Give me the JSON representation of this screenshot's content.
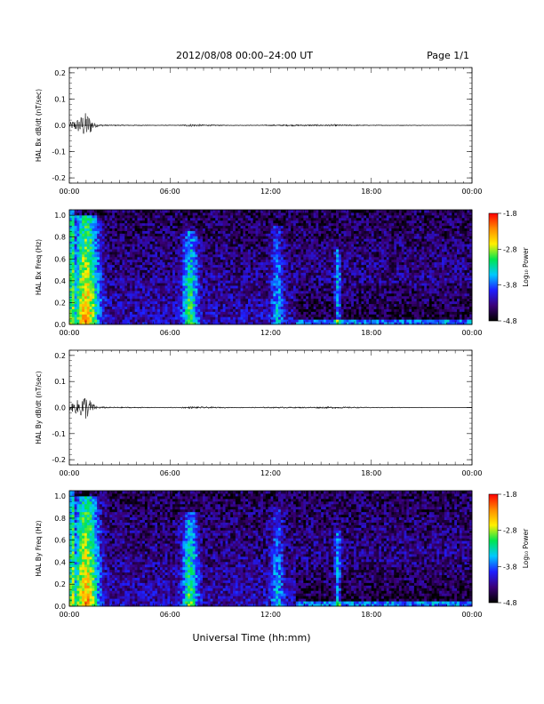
{
  "header": {
    "title": "2012/08/08   00:00–24:00 UT",
    "page": "Page 1/1"
  },
  "xlabel": "Universal Time (hh:mm)",
  "xticks": [
    "00:00",
    "06:00",
    "12:00",
    "18:00",
    "00:00"
  ],
  "colorbar": {
    "label": "Log₁₀ Power",
    "ticks": [
      "-1.8",
      "-2.8",
      "-3.8",
      "-4.8"
    ],
    "range": [
      -4.8,
      -1.8
    ],
    "colormap": [
      "#000000",
      "#3a0078",
      "#1e1eff",
      "#00c8ff",
      "#00e650",
      "#fff000",
      "#ff8c00",
      "#ff0000"
    ]
  },
  "chart_data": [
    {
      "type": "line",
      "ylabel": "HAL Bx dB/dt (nT/sec)",
      "ylim": [
        -0.22,
        0.22
      ],
      "yticks": [
        "0.2",
        "0.1",
        "0.0",
        "-0.1",
        "-0.2"
      ],
      "xlim_hours": [
        0,
        24
      ],
      "envelope": {
        "x_hours": [
          0,
          0.3,
          0.6,
          0.9,
          1.1,
          1.3,
          1.5,
          1.8,
          2.5,
          3.2,
          5,
          6.5,
          7.2,
          8,
          9.5,
          11,
          12,
          13,
          14,
          15,
          16,
          17,
          18,
          20,
          22,
          24
        ],
        "amplitude": [
          0.01,
          0.02,
          0.03,
          0.05,
          0.045,
          0.03,
          0.01,
          0.005,
          0.003,
          0.003,
          0.002,
          0.002,
          0.006,
          0.004,
          0.002,
          0.002,
          0.003,
          0.004,
          0.004,
          0.004,
          0.004,
          0.003,
          0.002,
          0.002,
          0.001,
          0.001
        ]
      }
    },
    {
      "type": "heatmap",
      "ylabel": "HAL Bx Freq (Hz)",
      "ylim": [
        0,
        1.05
      ],
      "yticks": [
        "1.0",
        "0.8",
        "0.6",
        "0.4",
        "0.2",
        "0.0"
      ],
      "xlim_hours": [
        0,
        24
      ],
      "features": [
        {
          "t_hours": 1.0,
          "width_hours": 0.8,
          "fmax_hz": 1.0,
          "level": -2.3
        },
        {
          "t_hours": 7.2,
          "width_hours": 0.5,
          "fmax_hz": 0.85,
          "level": -3.0
        },
        {
          "t_hours": 12.4,
          "width_hours": 0.4,
          "fmax_hz": 0.9,
          "level": -3.5
        },
        {
          "t_hours": 16.0,
          "width_hours": 0.2,
          "fmax_hz": 0.7,
          "level": -3.2
        }
      ]
    },
    {
      "type": "line",
      "ylabel": "HAL By dB/dt (nT/sec)",
      "ylim": [
        -0.22,
        0.22
      ],
      "yticks": [
        "0.2",
        "0.1",
        "0.0",
        "-0.1",
        "-0.2"
      ],
      "xlim_hours": [
        0,
        24
      ],
      "envelope": {
        "x_hours": [
          0,
          0.3,
          0.6,
          0.9,
          1.1,
          1.3,
          1.5,
          1.8,
          2.5,
          3.2,
          5,
          6.5,
          7.2,
          8,
          9.5,
          11,
          12,
          13,
          14,
          15,
          16,
          17,
          18,
          20,
          22,
          24
        ],
        "amplitude": [
          0.01,
          0.02,
          0.035,
          0.05,
          0.04,
          0.025,
          0.01,
          0.005,
          0.003,
          0.003,
          0.002,
          0.002,
          0.005,
          0.004,
          0.002,
          0.002,
          0.003,
          0.003,
          0.003,
          0.004,
          0.004,
          0.003,
          0.002,
          0.002,
          0.001,
          0.001
        ]
      }
    },
    {
      "type": "heatmap",
      "ylabel": "HAL By Freq (Hz)",
      "ylim": [
        0,
        1.05
      ],
      "yticks": [
        "1.0",
        "0.8",
        "0.6",
        "0.4",
        "0.2",
        "0.0"
      ],
      "xlim_hours": [
        0,
        24
      ],
      "features": [
        {
          "t_hours": 1.0,
          "width_hours": 0.8,
          "fmax_hz": 1.0,
          "level": -2.3
        },
        {
          "t_hours": 7.2,
          "width_hours": 0.5,
          "fmax_hz": 0.85,
          "level": -3.0
        },
        {
          "t_hours": 12.4,
          "width_hours": 0.4,
          "fmax_hz": 0.9,
          "level": -3.5
        },
        {
          "t_hours": 16.0,
          "width_hours": 0.2,
          "fmax_hz": 0.7,
          "level": -3.2
        }
      ]
    }
  ]
}
